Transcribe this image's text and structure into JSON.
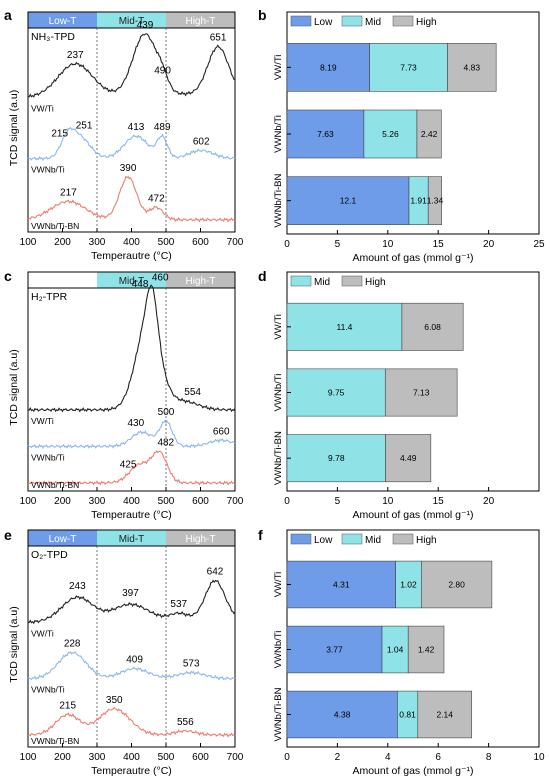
{
  "colors": {
    "low": "#6f9ce8",
    "mid": "#8fe3e6",
    "high": "#bdbdbd",
    "black": "#222222",
    "blue": "#8db7ee",
    "red": "#ee7d6f"
  },
  "chart_data": [
    {
      "id": "a",
      "type": "line",
      "panel_label": "a",
      "inner_label": "NH₃-TPD",
      "xlabel": "Temperautre (°C)",
      "ylabel": "TCD signal (a.u)",
      "xlim": [
        100,
        700
      ],
      "xticks": [
        100,
        200,
        300,
        400,
        500,
        600,
        700
      ],
      "regions": [
        {
          "label": "Low-T",
          "from": 100,
          "to": 300,
          "color": "#6f9ce8"
        },
        {
          "label": "Mid-T",
          "from": 300,
          "to": 500,
          "color": "#8fe3e6"
        },
        {
          "label": "High-T",
          "from": 500,
          "to": 700,
          "color": "#bdbdbd"
        }
      ],
      "divider_lines": [
        300,
        500
      ],
      "series": [
        {
          "name": "VW/Ti",
          "color": "#222222",
          "offset": 0.66,
          "peaks": [
            [
              237,
              0.16,
              50
            ],
            [
              439,
              0.3,
              35
            ],
            [
              490,
              0.05,
              15
            ],
            [
              651,
              0.23,
              30
            ]
          ],
          "base": 0.02,
          "labels": [
            237,
            439,
            490,
            651
          ]
        },
        {
          "name": "VWNb/Ti",
          "color": "#8db7ee",
          "offset": 0.36,
          "peaks": [
            [
              215,
              0.09,
              20
            ],
            [
              251,
              0.1,
              30
            ],
            [
              413,
              0.11,
              35
            ],
            [
              489,
              0.1,
              15
            ],
            [
              602,
              0.04,
              35
            ]
          ],
          "base": 0.0,
          "labels": [
            251,
            215,
            413,
            489,
            602
          ]
        },
        {
          "name": "VWNb/Ti-BN",
          "color": "#ee7d6f",
          "offset": 0.06,
          "peaks": [
            [
              217,
              0.09,
              50
            ],
            [
              390,
              0.21,
              25
            ],
            [
              472,
              0.06,
              20
            ]
          ],
          "base": 0.0,
          "labels": [
            217,
            390,
            472
          ]
        }
      ]
    },
    {
      "id": "b",
      "type": "bar",
      "panel_label": "b",
      "orientation": "horizontal",
      "stacked": true,
      "categories": [
        "VW/Ti",
        "VWNb/Ti",
        "VWNb/Ti-BN"
      ],
      "series": [
        {
          "name": "Low",
          "color": "#6f9ce8",
          "values": [
            8.19,
            7.63,
            12.1
          ]
        },
        {
          "name": "Mid",
          "color": "#8fe3e6",
          "values": [
            7.73,
            5.26,
            1.91
          ]
        },
        {
          "name": "High",
          "color": "#bdbdbd",
          "values": [
            4.83,
            2.42,
            1.34
          ]
        }
      ],
      "value_labels": [
        [
          "8.19",
          "7.73",
          "4.83"
        ],
        [
          "7.63",
          "5.26",
          "2.42"
        ],
        [
          "12.1",
          "1.91",
          "1.34"
        ]
      ],
      "xlabel": "Amount of gas (mmol g⁻¹)",
      "xlim": [
        0,
        25
      ],
      "xticks": [
        0,
        5,
        10,
        15,
        20,
        25
      ],
      "legend": "top-left"
    },
    {
      "id": "c",
      "type": "line",
      "panel_label": "c",
      "inner_label": "H₂-TPR",
      "xlabel": "Temperautre (°C)",
      "ylabel": "TCD signal (a.u)",
      "xlim": [
        100,
        700
      ],
      "xticks": [
        100,
        200,
        300,
        400,
        500,
        600,
        700
      ],
      "regions": [
        {
          "label": "Mid-T",
          "from": 300,
          "to": 500,
          "color": "#8fe3e6"
        },
        {
          "label": "High-T",
          "from": 500,
          "to": 700,
          "color": "#bdbdbd"
        }
      ],
      "divider_lines": [
        500
      ],
      "series": [
        {
          "name": "VW/Ti",
          "color": "#222222",
          "offset": 0.4,
          "peaks": [
            [
              448,
              0.43,
              35
            ],
            [
              460,
              0.2,
              15
            ],
            [
              554,
              0.04,
              40
            ]
          ],
          "base": 0.0,
          "labels": [
            448,
            460,
            554
          ]
        },
        {
          "name": "VWNb/Ti",
          "color": "#8db7ee",
          "offset": 0.22,
          "peaks": [
            [
              430,
              0.07,
              30
            ],
            [
              500,
              0.12,
              18
            ],
            [
              660,
              0.03,
              35
            ]
          ],
          "base": 0.0,
          "labels": [
            430,
            500,
            660
          ]
        },
        {
          "name": "VWNb/Ti-BN",
          "color": "#ee7d6f",
          "offset": 0.04,
          "peaks": [
            [
              425,
              0.09,
              30
            ],
            [
              482,
              0.14,
              22
            ]
          ],
          "base": 0.0,
          "labels": [
            425,
            482
          ]
        }
      ]
    },
    {
      "id": "d",
      "type": "bar",
      "panel_label": "d",
      "orientation": "horizontal",
      "stacked": true,
      "categories": [
        "VW/Ti",
        "VWNb/Ti",
        "VWNb/Ti-BN"
      ],
      "series": [
        {
          "name": "Mid",
          "color": "#8fe3e6",
          "values": [
            11.4,
            9.75,
            9.78
          ]
        },
        {
          "name": "High",
          "color": "#bdbdbd",
          "values": [
            6.08,
            7.13,
            4.49
          ]
        }
      ],
      "value_labels": [
        [
          "11.4",
          "6.08"
        ],
        [
          "9.75",
          "7.13"
        ],
        [
          "9.78",
          "4.49"
        ]
      ],
      "xlabel": "Amount of gas (mmol g⁻¹)",
      "xlim": [
        0,
        25
      ],
      "xticks": [
        0,
        5,
        10,
        15,
        20
      ],
      "legend": "top-left"
    },
    {
      "id": "e",
      "type": "line",
      "panel_label": "e",
      "inner_label": "O₂-TPD",
      "xlabel": "Temperautre (°C)",
      "ylabel": "TCD signal (a.u)",
      "xlim": [
        100,
        700
      ],
      "xticks": [
        100,
        200,
        300,
        400,
        500,
        600,
        700
      ],
      "regions": [
        {
          "label": "Low-T",
          "from": 100,
          "to": 300,
          "color": "#6f9ce8"
        },
        {
          "label": "Mid-T",
          "from": 300,
          "to": 500,
          "color": "#8fe3e6"
        },
        {
          "label": "High-T",
          "from": 500,
          "to": 700,
          "color": "#bdbdbd"
        }
      ],
      "divider_lines": [
        300,
        500
      ],
      "series": [
        {
          "name": "VW/Ti",
          "color": "#222222",
          "offset": 0.62,
          "peaks": [
            [
              243,
              0.12,
              45
            ],
            [
              397,
              0.08,
              50
            ],
            [
              537,
              0.03,
              25
            ],
            [
              642,
              0.19,
              28
            ]
          ],
          "base": 0.02,
          "labels": [
            243,
            397,
            537,
            642
          ]
        },
        {
          "name": "VWNb/Ti",
          "color": "#8db7ee",
          "offset": 0.34,
          "peaks": [
            [
              228,
              0.13,
              40
            ],
            [
              409,
              0.05,
              40
            ],
            [
              573,
              0.03,
              40
            ]
          ],
          "base": 0.0,
          "labels": [
            228,
            409,
            573
          ]
        },
        {
          "name": "VWNb/Ti-BN",
          "color": "#ee7d6f",
          "offset": 0.06,
          "peaks": [
            [
              215,
              0.1,
              35
            ],
            [
              350,
              0.13,
              45
            ],
            [
              556,
              0.02,
              30
            ]
          ],
          "base": 0.0,
          "labels": [
            215,
            350,
            556
          ]
        }
      ]
    },
    {
      "id": "f",
      "type": "bar",
      "panel_label": "f",
      "orientation": "horizontal",
      "stacked": true,
      "categories": [
        "VW/Ti",
        "VWNb/Ti",
        "VWNb/Ti-BN"
      ],
      "series": [
        {
          "name": "Low",
          "color": "#6f9ce8",
          "values": [
            4.31,
            3.77,
            4.38
          ]
        },
        {
          "name": "Mid",
          "color": "#8fe3e6",
          "values": [
            1.02,
            1.04,
            0.81
          ]
        },
        {
          "name": "High",
          "color": "#bdbdbd",
          "values": [
            2.8,
            1.42,
            2.14
          ]
        }
      ],
      "value_labels": [
        [
          "4.31",
          "1.02",
          "2.80"
        ],
        [
          "3.77",
          "1.04",
          "1.42"
        ],
        [
          "4.38",
          "0.81",
          "2.14"
        ]
      ],
      "xlabel": "Amount of gas (mmol g⁻¹)",
      "xlim": [
        0,
        10
      ],
      "xticks": [
        0,
        2,
        4,
        6,
        8,
        10
      ],
      "legend": "top-left"
    }
  ]
}
